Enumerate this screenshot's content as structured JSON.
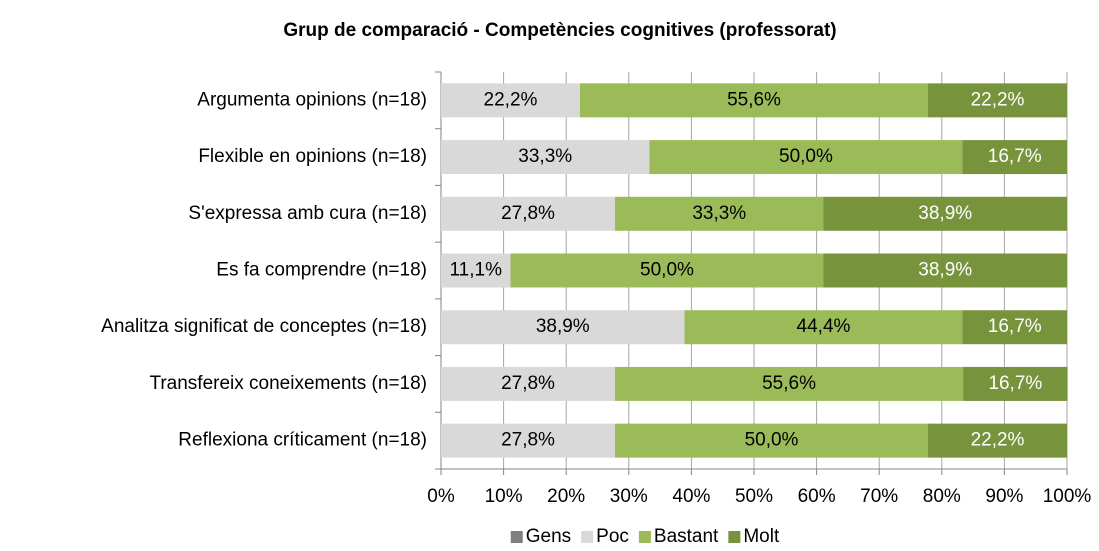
{
  "chart_data": {
    "type": "stacked-barh",
    "title": "Grup de comparació - Competències cognitives (professorat)",
    "categories": [
      "Argumenta opinions (n=18)",
      "Flexible en opinions (n=18)",
      "S'expressa amb cura (n=18)",
      "Es fa comprendre (n=18)",
      "Analitza significat de conceptes (n=18)",
      "Transfereix coneixements (n=18)",
      "Reflexiona críticament (n=18)"
    ],
    "series": [
      {
        "name": "Gens",
        "color": "#7f7f7f",
        "values": [
          0,
          0,
          0,
          0,
          0,
          0,
          0
        ]
      },
      {
        "name": "Poc",
        "color": "#d9d9d9",
        "label_color": "#000000",
        "values": [
          22.2,
          33.3,
          27.8,
          11.1,
          38.9,
          27.8,
          27.8
        ],
        "value_labels": [
          "22,2%",
          "33,3%",
          "27,8%",
          "11,1%",
          "38,9%",
          "27,8%",
          "27,8%"
        ]
      },
      {
        "name": "Bastant",
        "color": "#9bbb59",
        "label_color": "#000000",
        "values": [
          55.6,
          50.0,
          33.3,
          50.0,
          44.4,
          55.6,
          50.0
        ],
        "value_labels": [
          "55,6%",
          "50,0%",
          "33,3%",
          "50,0%",
          "44,4%",
          "55,6%",
          "50,0%"
        ]
      },
      {
        "name": "Molt",
        "color": "#77933c",
        "label_color": "#ffffff",
        "values": [
          22.2,
          16.7,
          38.9,
          38.9,
          16.7,
          16.7,
          22.2
        ],
        "value_labels": [
          "22,2%",
          "16,7%",
          "38,9%",
          "38,9%",
          "16,7%",
          "16,7%",
          "22,2%"
        ]
      }
    ],
    "xlim": [
      0,
      100
    ],
    "xticks": [
      {
        "value": 0,
        "label": "0%"
      },
      {
        "value": 10,
        "label": "10%"
      },
      {
        "value": 20,
        "label": "20%"
      },
      {
        "value": 30,
        "label": "30%"
      },
      {
        "value": 40,
        "label": "40%"
      },
      {
        "value": 50,
        "label": "50%"
      },
      {
        "value": 60,
        "label": "60%"
      },
      {
        "value": 70,
        "label": "70%"
      },
      {
        "value": 80,
        "label": "80%"
      },
      {
        "value": 90,
        "label": "90%"
      },
      {
        "value": 100,
        "label": "100%"
      }
    ],
    "grid": true,
    "legend": "bottom"
  }
}
